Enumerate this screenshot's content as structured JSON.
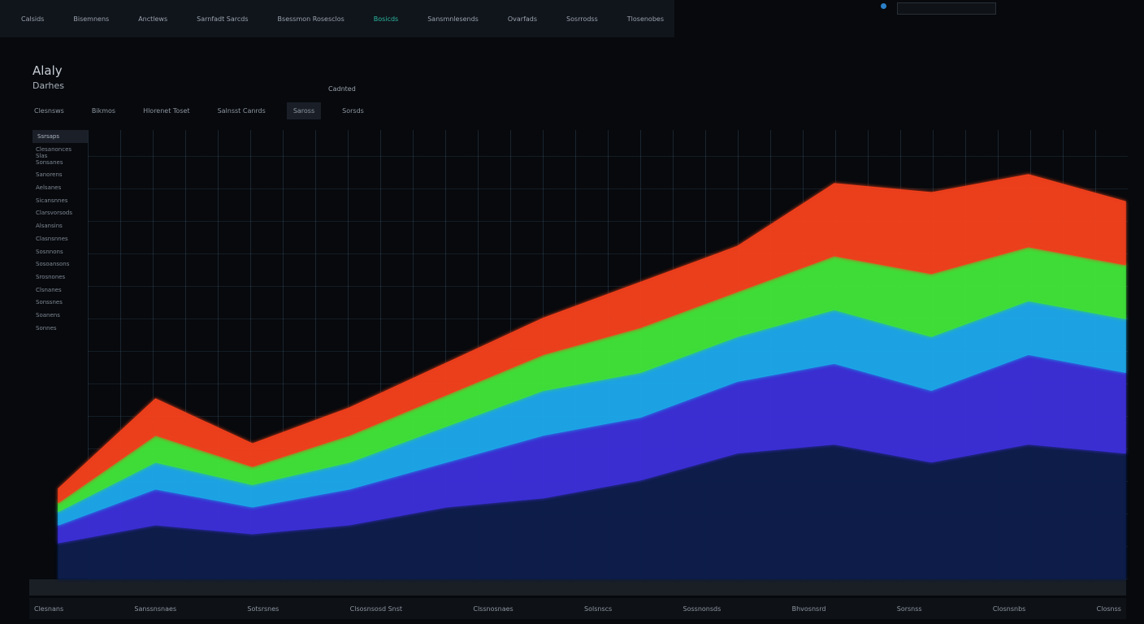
{
  "nav": [
    "Calsids",
    "Bisemnens",
    "Anctlews",
    "Sarnfadt Sarcds",
    "Bsessmon Rosesclos",
    "Bosicds",
    "Sansmnlesends",
    "Ovarfads",
    "Sosrrodss",
    "Tlosenobes"
  ],
  "header": {
    "title": "Alaly",
    "subtitle": "Darhes",
    "tag": "Cadnted"
  },
  "tabs": [
    "Clesnsws",
    "Bikmos",
    "Hlorenet Toset",
    "Salnsst Canrds",
    "Saross",
    "Sorsds"
  ],
  "sidebar": {
    "heading": "Ssrsaps",
    "items": [
      "Clesanonces Slas",
      "Sonsanes",
      "Sanorens",
      "Aelsanes",
      "Sicansnnes",
      "Clarsvorsods",
      "Alsansins",
      "Clasnsnnes",
      "Sosnnons",
      "Sosoansons",
      "Srosnones",
      "Clsnanes",
      "Sonssnes",
      "Soanens",
      "Sonnes"
    ]
  },
  "footer": [
    "Clesnans",
    "Sanssnsnaes",
    "Sotsrsnes",
    "Clsosnsosd Snst",
    "Clssnosnaes",
    "Solsnscs",
    "Sossnonsds",
    "Bhvosnsrd",
    "Sorsnss",
    "Closnsnbs",
    "Closnss"
  ],
  "chart_data": {
    "type": "area",
    "stacked": true,
    "categories": [
      null,
      null,
      null,
      null,
      null,
      null,
      null,
      null,
      null,
      null,
      null,
      null
    ],
    "ylim": [
      0,
      100
    ],
    "series": [
      {
        "color": "#0b1a4a",
        "values": [
          8,
          12,
          10,
          12,
          16,
          18,
          22,
          28,
          30,
          26,
          30,
          28
        ]
      },
      {
        "color": "#3b2fd6",
        "values": [
          4,
          8,
          6,
          8,
          10,
          14,
          14,
          16,
          18,
          16,
          20,
          18
        ]
      },
      {
        "color": "#1aa6e8",
        "values": [
          3,
          6,
          5,
          6,
          8,
          10,
          10,
          10,
          12,
          12,
          12,
          12
        ]
      },
      {
        "color": "#3fe03a",
        "values": [
          2,
          6,
          4,
          6,
          7,
          8,
          10,
          10,
          12,
          14,
          12,
          12
        ]
      },
      {
        "color": "#f0401a",
        "values": [
          3,
          8,
          5,
          6,
          7,
          8,
          10,
          10,
          16,
          18,
          16,
          14
        ]
      }
    ]
  }
}
